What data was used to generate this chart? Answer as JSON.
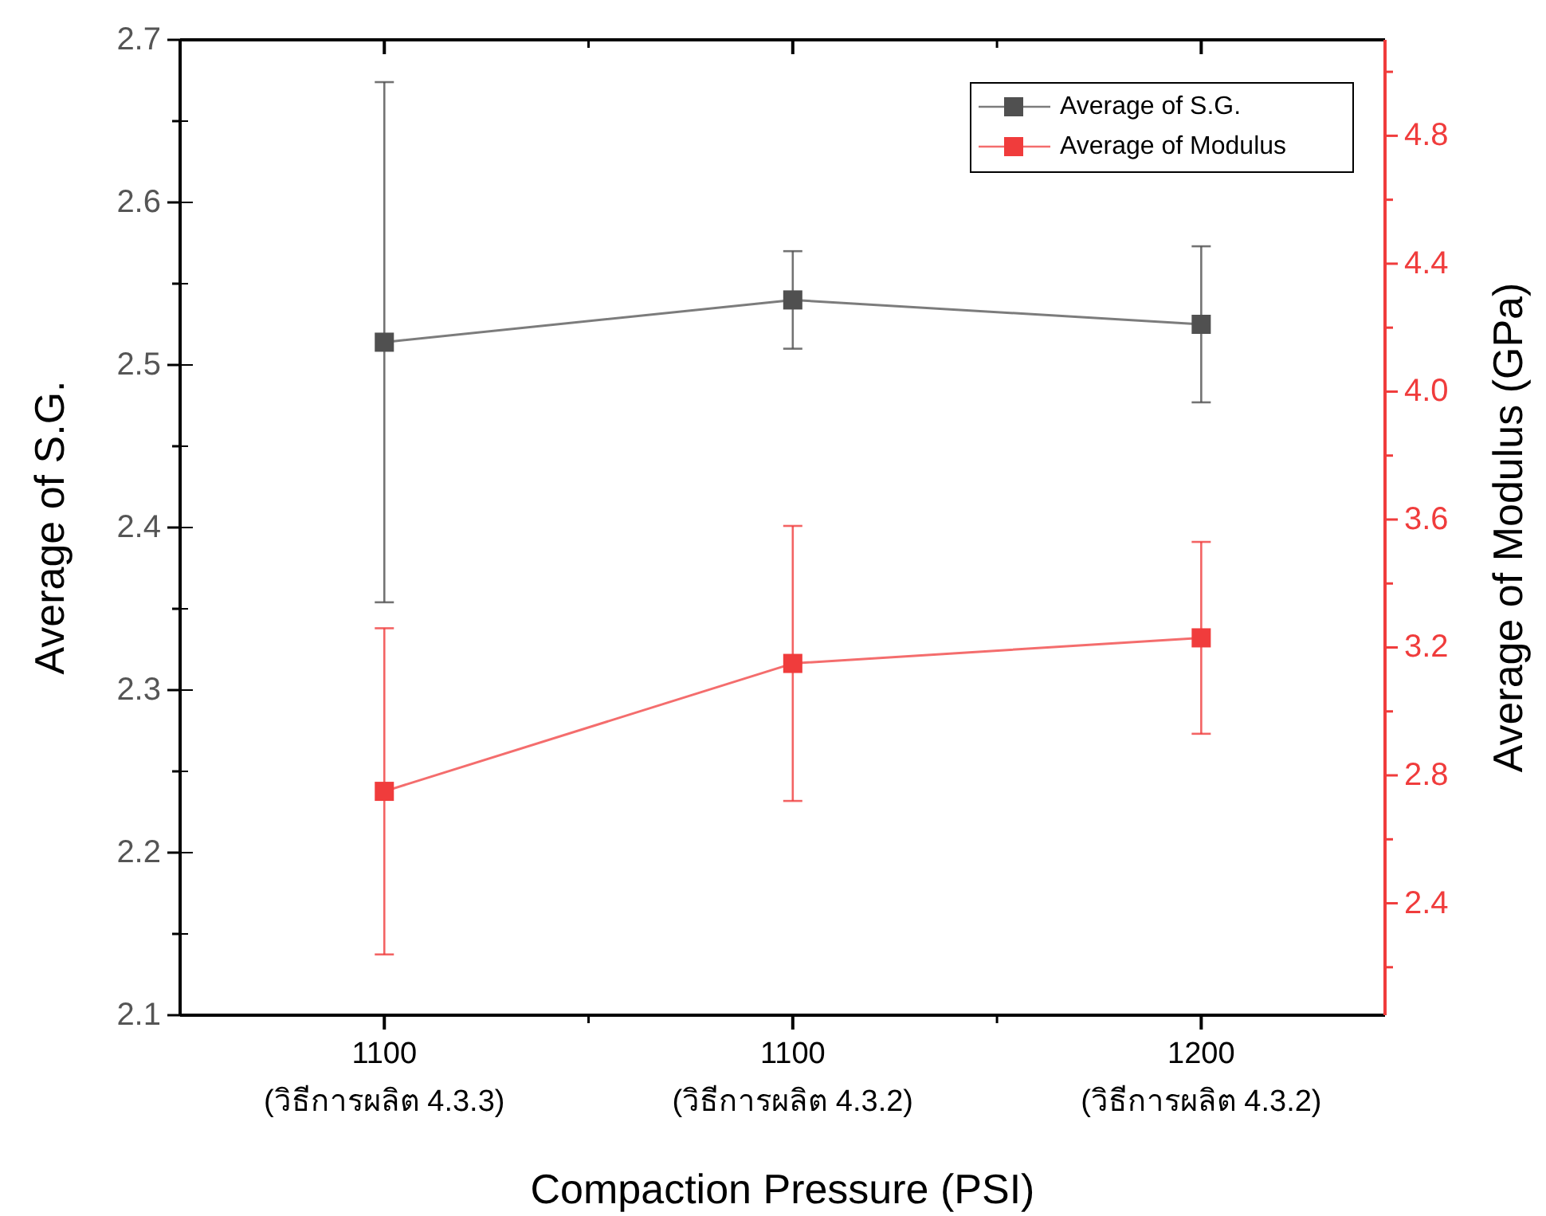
{
  "chart_data": {
    "type": "line",
    "xlabel": "Compaction Pressure (PSI)",
    "ylabel": "Average of S.G.",
    "y2label": "Average of Modulus (GPa)",
    "categories": [
      "1100\n(วิธีการผลิต 4.3.3)",
      "1100\n(วิธีการผลิต 4.3.2)",
      "1200\n(วิธีการผลิต 4.3.2)"
    ],
    "series": [
      {
        "name": "Average of S.G.",
        "color": "#505050",
        "values": [
          2.514,
          2.54,
          2.525
        ],
        "errors": [
          0.16,
          0.03,
          0.048
        ],
        "axis": "y"
      },
      {
        "name": "Average of Modulus",
        "color": "#f03c3c",
        "values": [
          2.75,
          3.15,
          3.23
        ],
        "errors": [
          0.51,
          0.43,
          0.3
        ],
        "axis": "y2"
      }
    ],
    "ylim": [
      2.1,
      2.7
    ],
    "yticks": [
      2.1,
      {
        "value": 2.15,
        "label": null
      },
      2.2,
      {
        "value": 2.25,
        "label": null
      },
      2.3,
      {
        "value": 2.35,
        "label": null
      },
      2.4,
      {
        "value": 2.45,
        "label": null
      },
      2.5,
      {
        "value": 2.55,
        "label": null
      },
      2.6,
      {
        "value": 2.65,
        "label": null
      },
      2.7
    ],
    "y2lim": [
      2.05,
      5.1
    ],
    "y2ticks": [
      {
        "value": 2.2,
        "label": null
      },
      2.4,
      {
        "value": 2.6,
        "label": null
      },
      2.8,
      {
        "value": 3.0,
        "label": null
      },
      3.2,
      {
        "value": 3.4,
        "label": null
      },
      3.6,
      {
        "value": 3.8,
        "label": null
      },
      {
        "value": 4.0,
        "label": "4.0"
      },
      {
        "value": 4.2,
        "label": null
      },
      4.4,
      {
        "value": 4.6,
        "label": null
      },
      4.8,
      {
        "value": 5.0,
        "label": null
      }
    ],
    "marker": "square",
    "line_style": "solid",
    "grid": false,
    "legend": "top right"
  }
}
